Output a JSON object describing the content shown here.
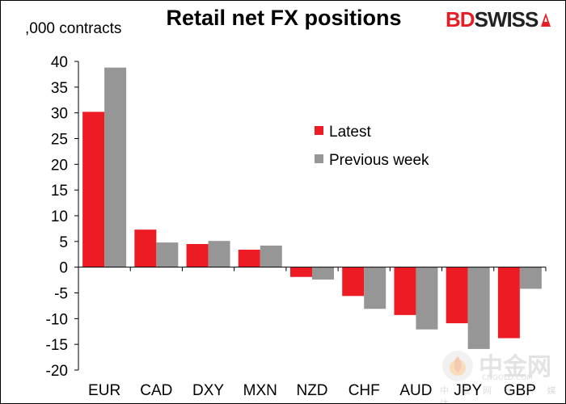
{
  "chart_title": "Retail net FX positions",
  "unit_label": ",000 contracts",
  "brand": {
    "part1": "BD",
    "part2": "SWISS",
    "accent": "#e31e26"
  },
  "watermark": {
    "main": "中金网",
    "url": "CNGOLD.COM",
    "sub": "中 金 网 经 济 媒 体"
  },
  "chart_data": {
    "type": "bar",
    "title": "Retail net FX positions",
    "ylabel": ",000 contracts",
    "xlabel": "",
    "categories": [
      "EUR",
      "CAD",
      "DXY",
      "MXN",
      "NZD",
      "CHF",
      "AUD",
      "JPY",
      "GBP"
    ],
    "series": [
      {
        "name": "Latest",
        "color": "#ed1c24",
        "values": [
          30.2,
          7.3,
          4.5,
          3.4,
          -1.9,
          -5.6,
          -9.3,
          -10.9,
          -13.8
        ]
      },
      {
        "name": "Previous week",
        "color": "#969696",
        "values": [
          38.8,
          4.8,
          5.1,
          4.2,
          -2.4,
          -8.1,
          -12.1,
          -15.9,
          -4.2
        ]
      }
    ],
    "ylim": [
      -20,
      40
    ],
    "yticks": [
      40,
      35,
      30,
      25,
      20,
      15,
      10,
      5,
      0,
      -5,
      -10,
      -15,
      -20
    ],
    "grid": false,
    "legend_position": "upper-right"
  }
}
